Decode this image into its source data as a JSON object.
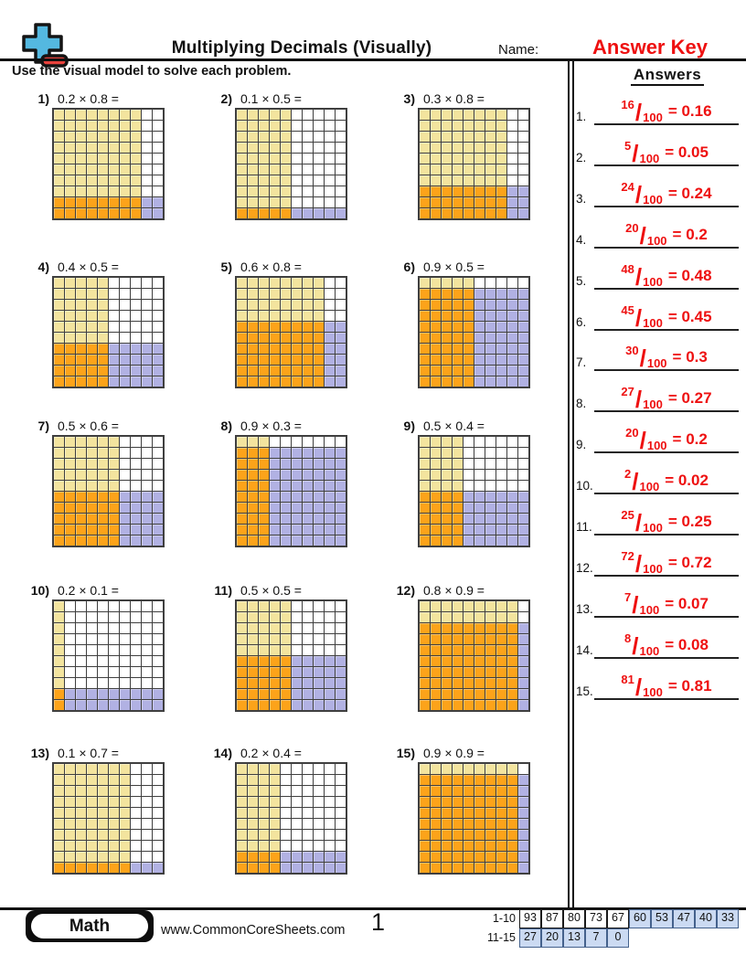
{
  "header": {
    "title": "Multiplying Decimals (Visually)",
    "name_label": "Name:",
    "answer_key_label": "Answer Key",
    "instruction": "Use the visual model to solve each problem."
  },
  "colors": {
    "overlap_product_cell": "#FCA31A",
    "second_factor_cell": "#F3E49E",
    "first_factor_cell": "#B1B1E3",
    "answer_red": "#EE1010",
    "score_highlight_blue": "#CBDAF2"
  },
  "problems": [
    {
      "num": "1)",
      "expr": "0.2 × 0.8 =",
      "shaded_rows": 2,
      "shaded_cols": 8
    },
    {
      "num": "2)",
      "expr": "0.1 × 0.5 =",
      "shaded_rows": 1,
      "shaded_cols": 5
    },
    {
      "num": "3)",
      "expr": "0.3 × 0.8 =",
      "shaded_rows": 3,
      "shaded_cols": 8
    },
    {
      "num": "4)",
      "expr": "0.4 × 0.5 =",
      "shaded_rows": 4,
      "shaded_cols": 5
    },
    {
      "num": "5)",
      "expr": "0.6 × 0.8 =",
      "shaded_rows": 6,
      "shaded_cols": 8
    },
    {
      "num": "6)",
      "expr": "0.9 × 0.5 =",
      "shaded_rows": 9,
      "shaded_cols": 5
    },
    {
      "num": "7)",
      "expr": "0.5 × 0.6 =",
      "shaded_rows": 5,
      "shaded_cols": 6
    },
    {
      "num": "8)",
      "expr": "0.9 × 0.3 =",
      "shaded_rows": 9,
      "shaded_cols": 3
    },
    {
      "num": "9)",
      "expr": "0.5 × 0.4 =",
      "shaded_rows": 5,
      "shaded_cols": 4
    },
    {
      "num": "10)",
      "expr": "0.2 × 0.1 =",
      "shaded_rows": 2,
      "shaded_cols": 1
    },
    {
      "num": "11)",
      "expr": "0.5 × 0.5 =",
      "shaded_rows": 5,
      "shaded_cols": 5
    },
    {
      "num": "12)",
      "expr": "0.8 × 0.9 =",
      "shaded_rows": 8,
      "shaded_cols": 9
    },
    {
      "num": "13)",
      "expr": "0.1 × 0.7 =",
      "shaded_rows": 1,
      "shaded_cols": 7
    },
    {
      "num": "14)",
      "expr": "0.2 × 0.4 =",
      "shaded_rows": 2,
      "shaded_cols": 4
    },
    {
      "num": "15)",
      "expr": "0.9 × 0.9 =",
      "shaded_rows": 9,
      "shaded_cols": 9
    }
  ],
  "answers_panel": {
    "heading": "Answers",
    "slash": "/",
    "denominator": "100",
    "items": [
      {
        "num": "1.",
        "numerator": "16",
        "equals": "= 0.16"
      },
      {
        "num": "2.",
        "numerator": "5",
        "equals": "= 0.05"
      },
      {
        "num": "3.",
        "numerator": "24",
        "equals": "= 0.24"
      },
      {
        "num": "4.",
        "numerator": "20",
        "equals": "= 0.2"
      },
      {
        "num": "5.",
        "numerator": "48",
        "equals": "= 0.48"
      },
      {
        "num": "6.",
        "numerator": "45",
        "equals": "= 0.45"
      },
      {
        "num": "7.",
        "numerator": "30",
        "equals": "= 0.3"
      },
      {
        "num": "8.",
        "numerator": "27",
        "equals": "= 0.27"
      },
      {
        "num": "9.",
        "numerator": "20",
        "equals": "= 0.2"
      },
      {
        "num": "10.",
        "numerator": "2",
        "equals": "= 0.02"
      },
      {
        "num": "11.",
        "numerator": "25",
        "equals": "= 0.25"
      },
      {
        "num": "12.",
        "numerator": "72",
        "equals": "= 0.72"
      },
      {
        "num": "13.",
        "numerator": "7",
        "equals": "= 0.07"
      },
      {
        "num": "14.",
        "numerator": "8",
        "equals": "= 0.08"
      },
      {
        "num": "15.",
        "numerator": "81",
        "equals": "= 0.81"
      }
    ]
  },
  "footer": {
    "subject_badge": "Math",
    "website": "www.CommonCoreSheets.com",
    "page_number": "1",
    "score_table": {
      "rows": [
        {
          "label": "1-10",
          "values": [
            "93",
            "87",
            "80",
            "73",
            "67",
            "60",
            "53",
            "47",
            "40",
            "33"
          ],
          "highlight_start": 5
        },
        {
          "label": "11-15",
          "values": [
            "27",
            "20",
            "13",
            "7",
            "0"
          ],
          "highlight_start": 0
        }
      ]
    }
  }
}
